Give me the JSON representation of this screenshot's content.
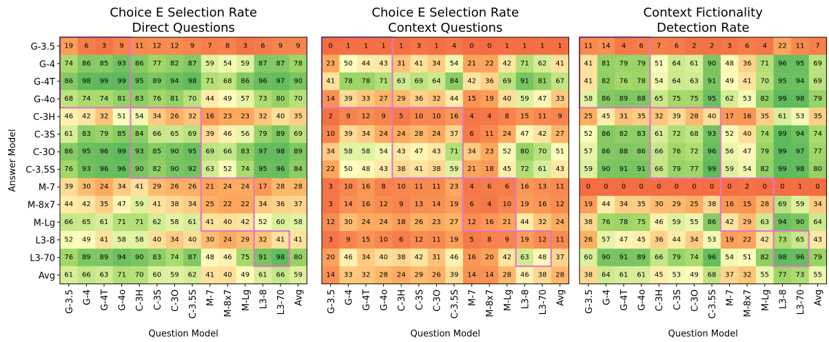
{
  "chart_data": [
    {
      "type": "heatmap",
      "title": "Choice E Selection Rate",
      "subtitle": "Direct Questions",
      "xlabel": "Question Model",
      "ylabel": "Answer Model",
      "x_categories": [
        "G-3.5",
        "G-4",
        "G-4T",
        "G-4o",
        "C-3H",
        "C-3S",
        "C-3O",
        "C-3.5S",
        "M-7",
        "M-8x7",
        "M-Lg",
        "L3-8",
        "L3-70",
        "Avg"
      ],
      "y_categories": [
        "G-3.5",
        "G-4",
        "G-4T",
        "G-4o",
        "C-3H",
        "C-3S",
        "C-3O",
        "C-3.5S",
        "M-7",
        "M-8x7",
        "M-Lg",
        "L3-8",
        "L3-70",
        "Avg"
      ],
      "color_range": [
        0,
        100
      ],
      "colormap": [
        "#f46d43",
        "#fdae61",
        "#ffffbf",
        "#a6d96a",
        "#5cb85c"
      ],
      "highlight_blocks": [
        [
          0,
          3
        ],
        [
          4,
          7
        ],
        [
          8,
          10
        ],
        [
          11,
          12
        ]
      ],
      "highlight_color": "#e377c2",
      "values": [
        [
          19,
          6,
          3,
          9,
          11,
          12,
          12,
          9,
          7,
          8,
          3,
          6,
          9,
          9
        ],
        [
          74,
          86,
          85,
          93,
          86,
          77,
          82,
          87,
          59,
          54,
          59,
          87,
          87,
          78
        ],
        [
          86,
          98,
          99,
          99,
          95,
          89,
          94,
          98,
          71,
          68,
          86,
          96,
          97,
          90
        ],
        [
          68,
          74,
          74,
          81,
          83,
          76,
          81,
          70,
          44,
          49,
          57,
          73,
          80,
          70
        ],
        [
          46,
          42,
          32,
          51,
          54,
          34,
          26,
          32,
          16,
          23,
          23,
          32,
          40,
          35
        ],
        [
          61,
          83,
          79,
          85,
          84,
          66,
          65,
          69,
          39,
          46,
          56,
          79,
          89,
          69
        ],
        [
          86,
          95,
          96,
          99,
          93,
          85,
          90,
          95,
          69,
          66,
          83,
          97,
          98,
          89
        ],
        [
          76,
          93,
          96,
          96,
          90,
          82,
          90,
          92,
          63,
          52,
          74,
          95,
          96,
          84
        ],
        [
          39,
          30,
          24,
          34,
          41,
          29,
          26,
          26,
          21,
          24,
          24,
          17,
          28,
          28
        ],
        [
          44,
          42,
          35,
          47,
          59,
          41,
          38,
          34,
          25,
          22,
          22,
          34,
          36,
          37
        ],
        [
          66,
          65,
          61,
          71,
          71,
          62,
          58,
          61,
          41,
          40,
          42,
          52,
          60,
          58
        ],
        [
          52,
          49,
          41,
          58,
          58,
          40,
          34,
          40,
          30,
          24,
          29,
          32,
          41,
          41
        ],
        [
          76,
          89,
          89,
          94,
          90,
          83,
          74,
          87,
          48,
          46,
          75,
          91,
          98,
          80
        ],
        [
          61,
          66,
          63,
          71,
          70,
          60,
          59,
          62,
          41,
          40,
          49,
          61,
          66,
          59
        ]
      ]
    },
    {
      "type": "heatmap",
      "title": "Choice E Selection Rate",
      "subtitle": "Context Questions",
      "xlabel": "Question Model",
      "x_categories": [
        "G-3.5",
        "G-4",
        "G-4T",
        "G-4o",
        "C-3H",
        "C-3S",
        "C-3O",
        "C-3.5S",
        "M-7",
        "M-8x7",
        "M-Lg",
        "L3-8",
        "L3-70",
        "Avg"
      ],
      "color_range": [
        0,
        100
      ],
      "colormap": [
        "#f46d43",
        "#fdae61",
        "#ffffbf",
        "#a6d96a",
        "#5cb85c"
      ],
      "highlight_blocks": [
        [
          0,
          3
        ],
        [
          4,
          7
        ],
        [
          8,
          10
        ],
        [
          11,
          12
        ]
      ],
      "highlight_color": "#e377c2",
      "values": [
        [
          0,
          1,
          1,
          1,
          1,
          3,
          1,
          4,
          0,
          0,
          1,
          1,
          1,
          1
        ],
        [
          23,
          50,
          44,
          43,
          31,
          41,
          34,
          54,
          21,
          22,
          42,
          71,
          62,
          41
        ],
        [
          41,
          78,
          78,
          71,
          63,
          69,
          64,
          84,
          42,
          36,
          69,
          91,
          81,
          67
        ],
        [
          14,
          39,
          33,
          27,
          29,
          36,
          32,
          44,
          15,
          19,
          40,
          59,
          47,
          33
        ],
        [
          2,
          9,
          12,
          9,
          5,
          10,
          10,
          16,
          4,
          4,
          8,
          15,
          11,
          9
        ],
        [
          10,
          39,
          34,
          24,
          24,
          28,
          24,
          37,
          6,
          11,
          24,
          47,
          42,
          27
        ],
        [
          34,
          58,
          58,
          54,
          43,
          47,
          43,
          71,
          34,
          23,
          52,
          80,
          70,
          51
        ],
        [
          22,
          50,
          48,
          43,
          38,
          41,
          38,
          59,
          21,
          18,
          45,
          72,
          61,
          43
        ],
        [
          3,
          10,
          16,
          8,
          10,
          11,
          11,
          23,
          4,
          6,
          6,
          16,
          13,
          11
        ],
        [
          3,
          14,
          16,
          12,
          9,
          13,
          14,
          19,
          6,
          4,
          10,
          19,
          16,
          12
        ],
        [
          12,
          30,
          24,
          24,
          18,
          26,
          23,
          27,
          12,
          16,
          21,
          44,
          32,
          24
        ],
        [
          3,
          9,
          15,
          10,
          6,
          12,
          11,
          19,
          5,
          8,
          9,
          19,
          12,
          11
        ],
        [
          20,
          46,
          34,
          40,
          38,
          42,
          31,
          46,
          16,
          20,
          42,
          63,
          48,
          37
        ],
        [
          14,
          33,
          32,
          28,
          24,
          29,
          26,
          39,
          14,
          14,
          28,
          46,
          38,
          28
        ]
      ]
    },
    {
      "type": "heatmap",
      "title": "Context Fictionality",
      "subtitle": "Detection Rate",
      "xlabel": "Question Model",
      "x_categories": [
        "G-3.5",
        "G-4",
        "G-4T",
        "G-4o",
        "C-3H",
        "C-3S",
        "C-3O",
        "C-3.5S",
        "M-7",
        "M-8x7",
        "M-Lg",
        "L3-8",
        "L3-70",
        "Avg"
      ],
      "color_range": [
        0,
        100
      ],
      "colormap": [
        "#f46d43",
        "#fdae61",
        "#ffffbf",
        "#a6d96a",
        "#5cb85c"
      ],
      "highlight_blocks": [
        [
          0,
          3
        ],
        [
          4,
          7
        ],
        [
          8,
          10
        ],
        [
          11,
          12
        ]
      ],
      "highlight_color": "#e377c2",
      "values": [
        [
          11,
          14,
          4,
          6,
          7,
          6,
          2,
          2,
          3,
          6,
          4,
          22,
          11,
          7
        ],
        [
          41,
          81,
          79,
          79,
          51,
          64,
          61,
          90,
          48,
          36,
          71,
          96,
          95,
          69
        ],
        [
          41,
          82,
          76,
          78,
          54,
          64,
          63,
          91,
          49,
          41,
          70,
          95,
          94,
          69
        ],
        [
          58,
          86,
          89,
          88,
          65,
          75,
          75,
          95,
          62,
          53,
          82,
          99,
          98,
          79
        ],
        [
          25,
          45,
          31,
          35,
          32,
          39,
          28,
          40,
          17,
          16,
          35,
          61,
          53,
          35
        ],
        [
          52,
          86,
          82,
          83,
          61,
          72,
          68,
          93,
          52,
          40,
          74,
          99,
          94,
          74
        ],
        [
          57,
          86,
          88,
          86,
          66,
          76,
          72,
          96,
          56,
          47,
          79,
          99,
          97,
          77
        ],
        [
          59,
          90,
          91,
          91,
          66,
          79,
          77,
          99,
          59,
          54,
          82,
          99,
          98,
          80
        ],
        [
          0,
          0,
          0,
          0,
          0,
          0,
          0,
          0,
          0,
          2,
          0,
          0,
          1,
          0
        ],
        [
          19,
          44,
          34,
          35,
          30,
          29,
          25,
          38,
          16,
          15,
          28,
          69,
          59,
          34
        ],
        [
          38,
          76,
          78,
          75,
          46,
          59,
          55,
          86,
          42,
          29,
          63,
          94,
          90,
          64
        ],
        [
          26,
          57,
          47,
          45,
          36,
          44,
          34,
          53,
          19,
          22,
          42,
          73,
          65,
          43
        ],
        [
          60,
          90,
          91,
          89,
          66,
          79,
          74,
          96,
          54,
          51,
          82,
          98,
          96,
          79
        ],
        [
          38,
          64,
          61,
          61,
          45,
          53,
          49,
          68,
          37,
          32,
          55,
          77,
          73,
          55
        ]
      ]
    }
  ]
}
